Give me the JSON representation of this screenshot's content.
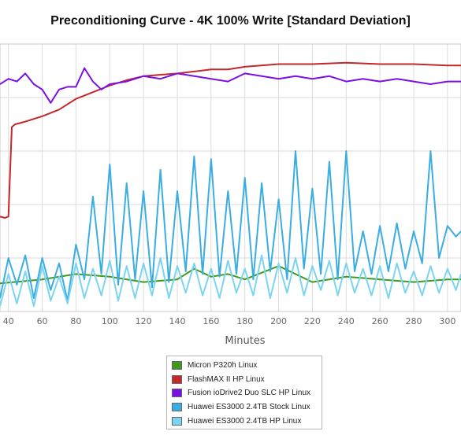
{
  "chart_data": {
    "type": "line",
    "title": "Preconditioning Curve - 4K 100% Write [Standard Deviation]",
    "xlabel": "Minutes",
    "ylabel": "",
    "xlim": [
      35,
      308
    ],
    "ylim": [
      0,
      100
    ],
    "x_ticks": [
      40,
      60,
      80,
      100,
      120,
      140,
      160,
      180,
      200,
      220,
      240,
      260,
      280,
      300
    ],
    "grid": true,
    "legend_position": "bottom-center",
    "series": [
      {
        "name": "Micron P320h Linux",
        "color": "#3f9a1c",
        "points": [
          [
            35,
            10.5
          ],
          [
            60,
            12
          ],
          [
            80,
            14
          ],
          [
            100,
            13
          ],
          [
            120,
            11
          ],
          [
            140,
            12
          ],
          [
            150,
            16
          ],
          [
            160,
            13
          ],
          [
            170,
            14
          ],
          [
            180,
            12
          ],
          [
            200,
            17
          ],
          [
            220,
            11
          ],
          [
            240,
            13
          ],
          [
            260,
            12
          ],
          [
            280,
            11
          ],
          [
            300,
            12
          ],
          [
            308,
            12
          ]
        ]
      },
      {
        "name": "FlashMAX II HP Linux",
        "color": "#c4282a",
        "points": [
          [
            35,
            35.5
          ],
          [
            38,
            35
          ],
          [
            40,
            35.5
          ],
          [
            42,
            69
          ],
          [
            44,
            70
          ],
          [
            50,
            71
          ],
          [
            60,
            73
          ],
          [
            70,
            75.5
          ],
          [
            80,
            79.5
          ],
          [
            90,
            82
          ],
          [
            100,
            84.5
          ],
          [
            110,
            86.5
          ],
          [
            120,
            88
          ],
          [
            140,
            89
          ],
          [
            160,
            90.5
          ],
          [
            170,
            90.5
          ],
          [
            180,
            91.5
          ],
          [
            200,
            92.5
          ],
          [
            220,
            92.5
          ],
          [
            240,
            93
          ],
          [
            260,
            92.5
          ],
          [
            280,
            92.5
          ],
          [
            300,
            92
          ],
          [
            308,
            92
          ]
        ]
      },
      {
        "name": "Fusion ioDrive2 Duo SLC HP Linux",
        "color": "#7a10e6",
        "points": [
          [
            35,
            85
          ],
          [
            40,
            87
          ],
          [
            45,
            86
          ],
          [
            50,
            89
          ],
          [
            55,
            85
          ],
          [
            60,
            83
          ],
          [
            65,
            78
          ],
          [
            70,
            83
          ],
          [
            75,
            84
          ],
          [
            80,
            84
          ],
          [
            85,
            91
          ],
          [
            90,
            86
          ],
          [
            95,
            83
          ],
          [
            100,
            85
          ],
          [
            110,
            86
          ],
          [
            120,
            88
          ],
          [
            130,
            87
          ],
          [
            140,
            89
          ],
          [
            150,
            88
          ],
          [
            160,
            87
          ],
          [
            170,
            86
          ],
          [
            180,
            89
          ],
          [
            190,
            88
          ],
          [
            200,
            87
          ],
          [
            210,
            88
          ],
          [
            220,
            87
          ],
          [
            230,
            88
          ],
          [
            240,
            86
          ],
          [
            250,
            87
          ],
          [
            260,
            86
          ],
          [
            270,
            87
          ],
          [
            280,
            86
          ],
          [
            290,
            85
          ],
          [
            300,
            86
          ],
          [
            308,
            86
          ]
        ]
      },
      {
        "name": "Huawei ES3000 2.4TB Stock Linux",
        "color": "#3aaee3",
        "points": [
          [
            35,
            5
          ],
          [
            40,
            20
          ],
          [
            45,
            10
          ],
          [
            50,
            21
          ],
          [
            55,
            5
          ],
          [
            60,
            20
          ],
          [
            65,
            8
          ],
          [
            70,
            18
          ],
          [
            75,
            4
          ],
          [
            80,
            25
          ],
          [
            85,
            12
          ],
          [
            90,
            43
          ],
          [
            95,
            14
          ],
          [
            100,
            55
          ],
          [
            105,
            10
          ],
          [
            110,
            48
          ],
          [
            115,
            12
          ],
          [
            120,
            45
          ],
          [
            125,
            9
          ],
          [
            130,
            53
          ],
          [
            135,
            11
          ],
          [
            140,
            45
          ],
          [
            145,
            15
          ],
          [
            150,
            58
          ],
          [
            155,
            14
          ],
          [
            160,
            57
          ],
          [
            165,
            13
          ],
          [
            170,
            45
          ],
          [
            175,
            14
          ],
          [
            180,
            50
          ],
          [
            185,
            12
          ],
          [
            190,
            48
          ],
          [
            195,
            15
          ],
          [
            200,
            42
          ],
          [
            205,
            12
          ],
          [
            210,
            60
          ],
          [
            215,
            16
          ],
          [
            220,
            46
          ],
          [
            225,
            14
          ],
          [
            230,
            56
          ],
          [
            235,
            12
          ],
          [
            240,
            60
          ],
          [
            245,
            15
          ],
          [
            250,
            30
          ],
          [
            255,
            14
          ],
          [
            260,
            32
          ],
          [
            265,
            15
          ],
          [
            270,
            33
          ],
          [
            275,
            16
          ],
          [
            280,
            30
          ],
          [
            285,
            18
          ],
          [
            290,
            60
          ],
          [
            295,
            20
          ],
          [
            300,
            32
          ],
          [
            305,
            28
          ],
          [
            308,
            30
          ]
        ]
      },
      {
        "name": "Huawei ES3000 2.4TB HP Linux",
        "color": "#7bd4f2",
        "points": [
          [
            35,
            2
          ],
          [
            40,
            14
          ],
          [
            45,
            3
          ],
          [
            50,
            15
          ],
          [
            55,
            2
          ],
          [
            60,
            17
          ],
          [
            65,
            4
          ],
          [
            70,
            13
          ],
          [
            75,
            3
          ],
          [
            80,
            18
          ],
          [
            85,
            5
          ],
          [
            90,
            16
          ],
          [
            95,
            6
          ],
          [
            100,
            19
          ],
          [
            105,
            4
          ],
          [
            110,
            17
          ],
          [
            115,
            5
          ],
          [
            120,
            18
          ],
          [
            125,
            6
          ],
          [
            130,
            20
          ],
          [
            135,
            5
          ],
          [
            140,
            17
          ],
          [
            145,
            7
          ],
          [
            150,
            18
          ],
          [
            155,
            6
          ],
          [
            160,
            16
          ],
          [
            165,
            5
          ],
          [
            170,
            19
          ],
          [
            175,
            7
          ],
          [
            180,
            16
          ],
          [
            185,
            6
          ],
          [
            190,
            21
          ],
          [
            195,
            5
          ],
          [
            200,
            18
          ],
          [
            205,
            7
          ],
          [
            210,
            20
          ],
          [
            215,
            6
          ],
          [
            220,
            17
          ],
          [
            225,
            8
          ],
          [
            230,
            19
          ],
          [
            235,
            6
          ],
          [
            240,
            18
          ],
          [
            245,
            7
          ],
          [
            250,
            16
          ],
          [
            255,
            6
          ],
          [
            260,
            17
          ],
          [
            265,
            5
          ],
          [
            270,
            18
          ],
          [
            275,
            7
          ],
          [
            280,
            15
          ],
          [
            285,
            6
          ],
          [
            290,
            17
          ],
          [
            295,
            7
          ],
          [
            300,
            16
          ],
          [
            305,
            8
          ],
          [
            308,
            14
          ]
        ]
      }
    ]
  }
}
